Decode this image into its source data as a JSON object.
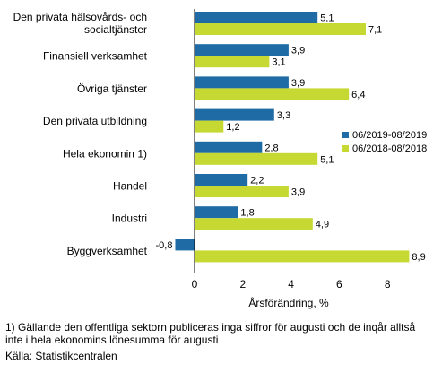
{
  "chart_data": {
    "type": "bar",
    "orientation": "horizontal",
    "categories": [
      [
        "Den privata hälsovårds- och",
        "socialtjänster"
      ],
      [
        "Finansiell verksamhet"
      ],
      [
        "Övriga tjänster"
      ],
      [
        "Den privata utbildning"
      ],
      [
        "Hela ekonomin 1)"
      ],
      [
        "Handel"
      ],
      [
        "Industri"
      ],
      [
        "Byggverksamhet"
      ]
    ],
    "series": [
      {
        "name": "06/2019-08/2019",
        "color": "#1f6ba5",
        "values": [
          5.1,
          3.9,
          3.9,
          3.3,
          2.8,
          2.2,
          1.8,
          -0.8
        ],
        "labels": [
          "5,1",
          "3,9",
          "3,9",
          "3,3",
          "2,8",
          "2,2",
          "1,8",
          "-0,8"
        ]
      },
      {
        "name": "06/2018-08/2018",
        "color": "#c6d832",
        "values": [
          7.1,
          3.1,
          6.4,
          1.2,
          5.1,
          3.9,
          4.9,
          8.9
        ],
        "labels": [
          "7,1",
          "3,1",
          "6,4",
          "1,2",
          "5,1",
          "3,9",
          "4,9",
          "8,9"
        ]
      }
    ],
    "xlabel": "Årsförändring, %",
    "xlim": [
      -1,
      9.5
    ],
    "xticks": [
      0,
      2,
      4,
      6,
      8
    ],
    "xtick_labels": [
      "0",
      "2",
      "4",
      "6",
      "8"
    ],
    "grid": false,
    "legend": "right"
  },
  "footnotes": {
    "note1_line1": "1) Gällande den offentliga sektorn publiceras inga siffror för augusti och de inqår alltså",
    "note1_line2": "inte i hela ekonomins lönesumma för augusti",
    "source": "Källa: Statistikcentralen"
  }
}
